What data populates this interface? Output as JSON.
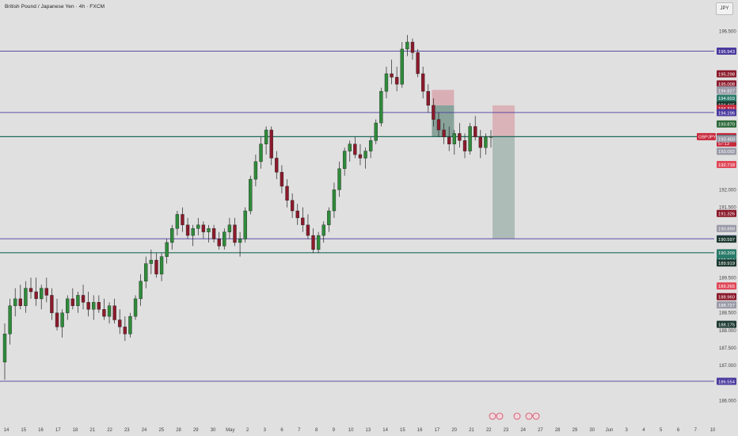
{
  "header": {
    "title": "British Pound / Japanese Yen · 4h · FXCM",
    "currency": "JPY"
  },
  "colors": {
    "background": "#e0e0e0",
    "up_candle": "#2e8b3a",
    "down_candle": "#8b1a2b",
    "purple_line": "#4a3a9e",
    "teal_line": "#1e6a5a",
    "target_zone": "#a8b8b2",
    "stop_zone": "#d8aab0",
    "current_price_tag": "#c8283c"
  },
  "chart_data": {
    "type": "candlestick",
    "symbol": "GBPJPY",
    "timeframe": "4h",
    "ylim": [
      185.9,
      196.9
    ],
    "y_ticks": [
      "196.500",
      "192.000",
      "191.500",
      "189.500",
      "188.500",
      "188.000",
      "187.500",
      "187.000",
      "186.000"
    ],
    "x_ticks": [
      "14",
      "15",
      "16",
      "17",
      "18",
      "21",
      "22",
      "23",
      "24",
      "25",
      "28",
      "29",
      "30",
      "May",
      "2",
      "3",
      "6",
      "7",
      "8",
      "9",
      "10",
      "13",
      "14",
      "15",
      "16",
      "17",
      "20",
      "21",
      "22",
      "23",
      "24",
      "27",
      "28",
      "29",
      "30",
      "Jun",
      "3",
      "4",
      "5",
      "6",
      "7",
      "10"
    ],
    "horizontal_lines": [
      {
        "price": 195.943,
        "color": "purple"
      },
      {
        "price": 194.196,
        "color": "purple"
      },
      {
        "price": 193.51,
        "color": "teal"
      },
      {
        "price": 190.606,
        "color": "purple"
      },
      {
        "price": 190.209,
        "color": "teal"
      },
      {
        "price": 186.554,
        "color": "purple"
      }
    ],
    "price_labels": [
      {
        "price": 195.943,
        "text": "195.943",
        "bg": "#4a3a9e",
        "fg": "#ffffff"
      },
      {
        "price": 195.298,
        "text": "195.298",
        "bg": "#8b1a2b",
        "fg": "#ffffff"
      },
      {
        "price": 195.008,
        "text": "195.008",
        "bg": "#8b1a2b",
        "fg": "#ffffff"
      },
      {
        "price": 194.843,
        "text": "194.843",
        "bg": "#9a9aa8",
        "fg": "#ffffff"
      },
      {
        "price": 194.827,
        "text": "194.827",
        "bg": "#9a9aa8",
        "fg": "#ffffff"
      },
      {
        "price": 194.603,
        "text": "194.603",
        "bg": "#2a7a6a",
        "fg": "#ffffff"
      },
      {
        "price": 194.415,
        "text": "194.415",
        "bg": "#1e3a32",
        "fg": "#ffffff"
      },
      {
        "price": 194.314,
        "text": "194.314",
        "bg": "#c8283c",
        "fg": "#ffffff"
      },
      {
        "price": 194.196,
        "text": "194.196",
        "bg": "#4a3a9e",
        "fg": "#ffffff"
      },
      {
        "price": 193.87,
        "text": "193.870",
        "bg": "#2e6a3a",
        "fg": "#ffffff"
      },
      {
        "price": 193.51,
        "text": "193.510",
        "bg": "#c8283c",
        "fg": "#ffffff",
        "sub": "57:13",
        "tag": "GBPJPY"
      },
      {
        "price": 193.463,
        "text": "193.463",
        "bg": "#1e3a32",
        "fg": "#ffffff"
      },
      {
        "price": 193.451,
        "text": "193.451",
        "bg": "#1e3a32",
        "fg": "#ffffff"
      },
      {
        "price": 193.45,
        "text": "193.450",
        "bg": "#9a9aa8",
        "fg": "#ffffff"
      },
      {
        "price": 193.092,
        "text": "193.092",
        "bg": "#9a9aa8",
        "fg": "#ffffff"
      },
      {
        "price": 192.718,
        "text": "192.718",
        "bg": "#e04858",
        "fg": "#ffffff"
      },
      {
        "price": 191.326,
        "text": "191.326",
        "bg": "#8b1a2b",
        "fg": "#ffffff"
      },
      {
        "price": 190.899,
        "text": "190.899",
        "bg": "#9a9aa8",
        "fg": "#ffffff"
      },
      {
        "price": 190.606,
        "text": "190.606",
        "bg": "#4a3a9e",
        "fg": "#ffffff"
      },
      {
        "price": 190.597,
        "text": "190.597",
        "bg": "#1e3a32",
        "fg": "#ffffff"
      },
      {
        "price": 190.209,
        "text": "190.209",
        "bg": "#2a7a6a",
        "fg": "#ffffff"
      },
      {
        "price": 190.014,
        "text": "190.014",
        "bg": "#2a7a6a",
        "fg": "#ffffff"
      },
      {
        "price": 189.919,
        "text": "189.919",
        "bg": "#1e3a32",
        "fg": "#ffffff"
      },
      {
        "price": 189.265,
        "text": "189.265",
        "bg": "#e04858",
        "fg": "#ffffff"
      },
      {
        "price": 188.96,
        "text": "188.960",
        "bg": "#8b1a2b",
        "fg": "#ffffff"
      },
      {
        "price": 188.727,
        "text": "188.727",
        "bg": "#9a9aa8",
        "fg": "#ffffff"
      },
      {
        "price": 188.175,
        "text": "188.175",
        "bg": "#1e3a32",
        "fg": "#ffffff"
      },
      {
        "price": 186.554,
        "text": "186.554",
        "bg": "#4a3a9e",
        "fg": "#ffffff"
      }
    ],
    "positions": [
      {
        "type": "short",
        "entry": 193.51,
        "stop": 194.84,
        "target": 193.51,
        "target_low": 193.51,
        "x_start": "15",
        "x_end": "15"
      },
      {
        "type": "short",
        "entry": 193.51,
        "stop": 194.4,
        "target": 190.606
      }
    ],
    "candles": [
      [
        187.1,
        188.2,
        186.6,
        187.9
      ],
      [
        187.9,
        188.9,
        187.6,
        188.7
      ],
      [
        188.7,
        189.2,
        188.4,
        188.9
      ],
      [
        188.9,
        189.3,
        188.6,
        188.7
      ],
      [
        188.7,
        189.4,
        188.5,
        189.2
      ],
      [
        189.2,
        189.5,
        188.9,
        189.1
      ],
      [
        189.1,
        189.5,
        188.7,
        188.9
      ],
      [
        188.9,
        189.3,
        188.6,
        189.2
      ],
      [
        189.2,
        189.5,
        188.8,
        189.0
      ],
      [
        189.0,
        189.2,
        188.3,
        188.5
      ],
      [
        188.5,
        188.9,
        188.0,
        188.1
      ],
      [
        188.1,
        188.6,
        187.8,
        188.5
      ],
      [
        188.5,
        189.0,
        188.3,
        188.9
      ],
      [
        188.9,
        189.2,
        188.6,
        188.7
      ],
      [
        188.7,
        189.1,
        188.5,
        189.0
      ],
      [
        189.0,
        189.3,
        188.6,
        188.8
      ],
      [
        188.8,
        189.1,
        188.4,
        188.6
      ],
      [
        188.6,
        189.0,
        188.3,
        188.8
      ],
      [
        188.8,
        189.0,
        188.5,
        188.6
      ],
      [
        188.6,
        188.9,
        188.3,
        188.4
      ],
      [
        188.4,
        188.8,
        188.2,
        188.7
      ],
      [
        188.7,
        188.9,
        188.2,
        188.3
      ],
      [
        188.3,
        188.6,
        187.9,
        188.1
      ],
      [
        188.1,
        188.4,
        187.7,
        187.9
      ],
      [
        187.9,
        188.5,
        187.8,
        188.4
      ],
      [
        188.4,
        189.0,
        188.3,
        188.9
      ],
      [
        188.9,
        189.6,
        188.7,
        189.4
      ],
      [
        189.4,
        190.1,
        189.2,
        189.9
      ],
      [
        189.9,
        190.3,
        189.6,
        190.0
      ],
      [
        190.0,
        190.2,
        189.5,
        189.6
      ],
      [
        189.6,
        190.2,
        189.4,
        190.1
      ],
      [
        190.1,
        190.6,
        189.9,
        190.5
      ],
      [
        190.5,
        191.0,
        190.3,
        190.9
      ],
      [
        190.9,
        191.4,
        190.7,
        191.3
      ],
      [
        191.3,
        191.5,
        190.8,
        191.0
      ],
      [
        191.0,
        191.2,
        190.6,
        190.7
      ],
      [
        190.7,
        191.0,
        190.4,
        190.9
      ],
      [
        190.9,
        191.2,
        190.7,
        191.0
      ],
      [
        191.0,
        191.1,
        190.6,
        190.8
      ],
      [
        190.8,
        191.0,
        190.5,
        190.9
      ],
      [
        190.9,
        191.0,
        190.5,
        190.6
      ],
      [
        190.6,
        190.8,
        190.3,
        190.4
      ],
      [
        190.4,
        190.9,
        190.3,
        190.8
      ],
      [
        190.8,
        191.2,
        190.6,
        191.0
      ],
      [
        191.0,
        191.2,
        190.4,
        190.5
      ],
      [
        190.5,
        190.8,
        190.1,
        190.6
      ],
      [
        190.6,
        191.5,
        190.5,
        191.4
      ],
      [
        191.4,
        192.4,
        191.3,
        192.3
      ],
      [
        192.3,
        193.0,
        192.1,
        192.8
      ],
      [
        192.8,
        193.5,
        192.6,
        193.3
      ],
      [
        193.3,
        193.8,
        193.0,
        193.7
      ],
      [
        193.7,
        193.8,
        192.7,
        192.9
      ],
      [
        192.9,
        193.1,
        192.3,
        192.5
      ],
      [
        192.5,
        192.7,
        191.9,
        192.1
      ],
      [
        192.1,
        192.3,
        191.5,
        191.7
      ],
      [
        191.7,
        191.9,
        191.2,
        191.4
      ],
      [
        191.4,
        191.6,
        191.0,
        191.2
      ],
      [
        191.2,
        191.5,
        190.8,
        191.0
      ],
      [
        191.0,
        191.3,
        190.6,
        190.7
      ],
      [
        190.7,
        190.9,
        190.2,
        190.3
      ],
      [
        190.3,
        190.8,
        190.2,
        190.7
      ],
      [
        190.7,
        191.1,
        190.5,
        191.0
      ],
      [
        191.0,
        191.5,
        190.8,
        191.4
      ],
      [
        191.4,
        192.2,
        191.2,
        192.0
      ],
      [
        192.0,
        192.8,
        191.8,
        192.6
      ],
      [
        192.6,
        193.2,
        192.4,
        193.1
      ],
      [
        193.1,
        193.4,
        192.8,
        193.3
      ],
      [
        193.3,
        193.5,
        192.9,
        193.0
      ],
      [
        193.0,
        193.3,
        192.7,
        192.9
      ],
      [
        192.9,
        193.2,
        192.6,
        193.1
      ],
      [
        193.1,
        193.5,
        192.9,
        193.4
      ],
      [
        193.4,
        194.0,
        193.3,
        193.9
      ],
      [
        193.9,
        194.9,
        193.8,
        194.8
      ],
      [
        194.8,
        195.5,
        194.6,
        195.3
      ],
      [
        195.3,
        195.7,
        195.0,
        195.2
      ],
      [
        195.2,
        195.5,
        194.8,
        195.0
      ],
      [
        195.0,
        196.2,
        194.9,
        196.0
      ],
      [
        196.0,
        196.4,
        195.8,
        196.2
      ],
      [
        196.2,
        196.3,
        195.7,
        195.9
      ],
      [
        195.9,
        196.0,
        195.2,
        195.3
      ],
      [
        195.3,
        195.5,
        194.6,
        194.8
      ],
      [
        194.8,
        195.0,
        194.2,
        194.4
      ],
      [
        194.4,
        194.6,
        193.8,
        194.0
      ],
      [
        194.0,
        194.2,
        193.5,
        193.7
      ],
      [
        193.7,
        193.9,
        193.3,
        193.5
      ],
      [
        193.5,
        193.8,
        193.1,
        193.3
      ],
      [
        193.3,
        193.7,
        193.0,
        193.6
      ],
      [
        193.6,
        193.9,
        193.2,
        193.4
      ],
      [
        193.4,
        193.6,
        192.9,
        193.1
      ],
      [
        193.1,
        193.9,
        193.0,
        193.8
      ],
      [
        193.8,
        194.1,
        193.4,
        193.5
      ],
      [
        193.5,
        193.7,
        192.9,
        193.2
      ],
      [
        193.2,
        193.6,
        193.0,
        193.5
      ],
      [
        193.5,
        193.7,
        193.2,
        193.51
      ]
    ]
  }
}
